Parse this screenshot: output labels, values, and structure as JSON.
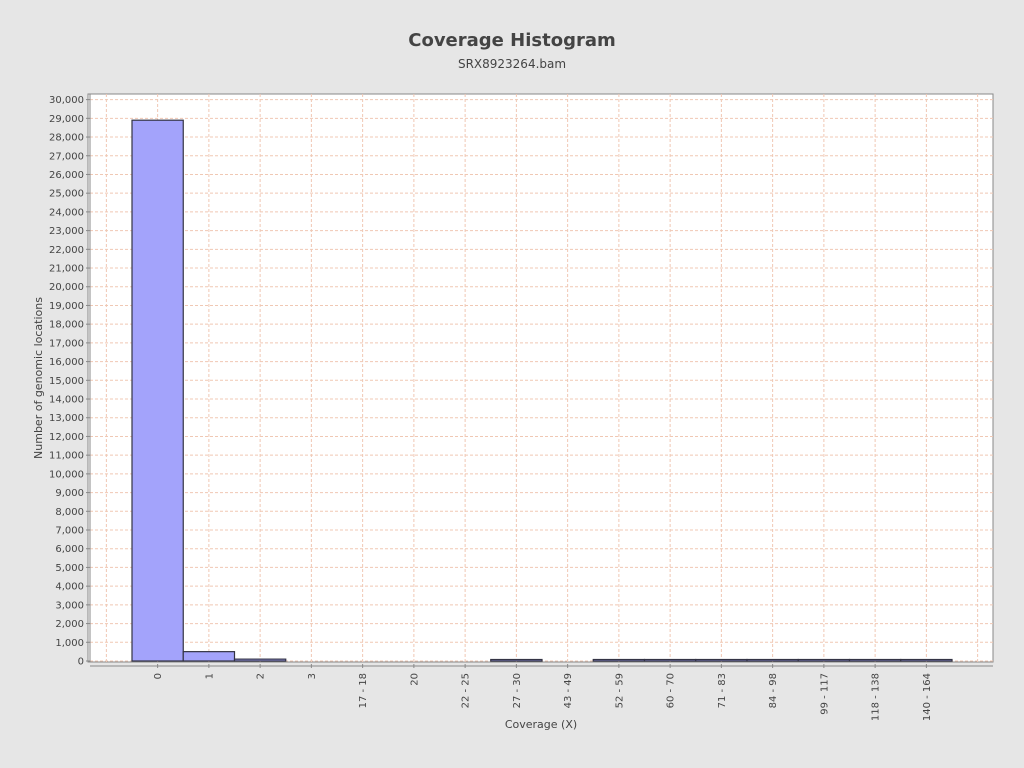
{
  "chart_data": {
    "type": "bar",
    "title": "Coverage Histogram",
    "subtitle": "SRX8923264.bam",
    "xlabel": "Coverage (X)",
    "ylabel": "Number of genomic locations",
    "ylim": [
      0,
      30300
    ],
    "ytick_step": 1000,
    "grid": true,
    "legend": "none",
    "categories": [
      "0",
      "1",
      "2",
      "3",
      "17 - 18",
      "20",
      "22 - 25",
      "27 - 30",
      "43 - 49",
      "52 - 59",
      "60 - 70",
      "71 - 83",
      "84 - 98",
      "99 - 117",
      "118 - 138",
      "140 - 164"
    ],
    "bar_values": [
      28900,
      500,
      100,
      0,
      0,
      0,
      0,
      30,
      0,
      30,
      30,
      80,
      80,
      30,
      80,
      30
    ],
    "colors": {
      "bar_fill": "#a3a3fb",
      "bar_stroke": "#333344",
      "grid": "#f0c8b4",
      "plot_bg": "#ffffff",
      "page_bg": "#e6e6e6",
      "text": "#444444"
    }
  }
}
